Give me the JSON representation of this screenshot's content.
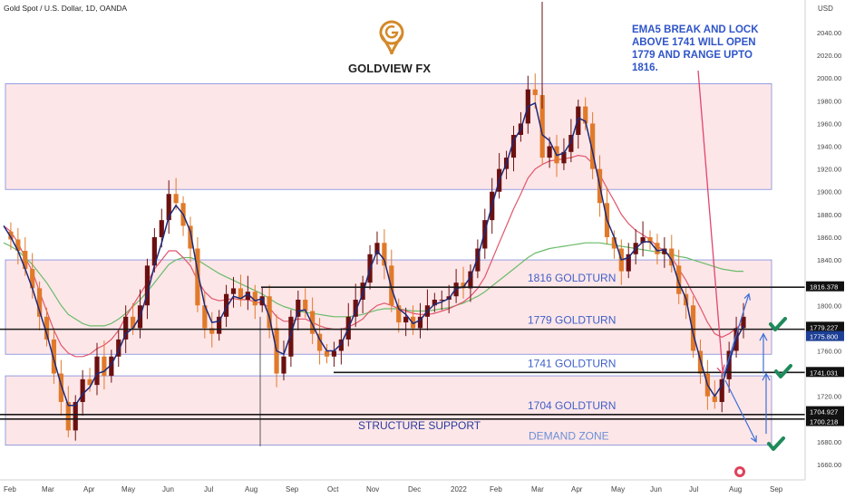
{
  "header": {
    "symbol_title": "Gold Spot / U.S. Dollar, 1D, OANDA"
  },
  "brand": {
    "name": "GOLDVIEW FX",
    "logo_icon": "goldview-g-pin-logo",
    "gold_color": "#d4892a"
  },
  "colors": {
    "zone_fill": "#fde4e6",
    "zone_stroke": "#6f7fd8",
    "price_line": "#1a1a1a",
    "label_blue": "#3f5fc8",
    "candle_up": "#6b1010",
    "candle_down": "#e07a2a",
    "ema_navy": "#1d2a7a",
    "ma_red": "#e0566c",
    "ma_green": "#6abb6a",
    "arrow_blue": "#3c6fd6",
    "check_green": "#1f8a5a",
    "annotation_arrow": "#e0466c"
  },
  "chart_data": {
    "type": "candlestick",
    "title": "Gold Spot / U.S. Dollar, 1D, OANDA",
    "y_unit": "USD",
    "ylim": [
      1650,
      2060
    ],
    "y_ticks": [
      1660,
      1680,
      1700,
      1720,
      1740,
      1760,
      1780,
      1800,
      1820,
      1840,
      1860,
      1880,
      1900,
      1920,
      1940,
      1960,
      1980,
      2000,
      2020,
      2040
    ],
    "x_ticks": [
      "Feb",
      "Mar",
      "Apr",
      "May",
      "Jun",
      "Jul",
      "Aug",
      "Sep",
      "Oct",
      "Nov",
      "Dec",
      "2022",
      "Feb",
      "Mar",
      "Apr",
      "May",
      "Jun",
      "Jul",
      "Aug",
      "Sep"
    ],
    "price_series_close": [
      1865,
      1858,
      1848,
      1832,
      1815,
      1790,
      1770,
      1740,
      1715,
      1690,
      1715,
      1735,
      1730,
      1755,
      1738,
      1755,
      1770,
      1790,
      1780,
      1800,
      1835,
      1860,
      1875,
      1898,
      1890,
      1870,
      1850,
      1800,
      1780,
      1775,
      1790,
      1810,
      1815,
      1805,
      1812,
      1800,
      1808,
      1780,
      1740,
      1755,
      1790,
      1805,
      1795,
      1775,
      1760,
      1755,
      1760,
      1770,
      1790,
      1805,
      1820,
      1845,
      1855,
      1835,
      1800,
      1785,
      1790,
      1780,
      1790,
      1800,
      1805,
      1805,
      1808,
      1820,
      1815,
      1830,
      1850,
      1875,
      1900,
      1920,
      1930,
      1950,
      1960,
      1990,
      1985,
      1930,
      1940,
      1925,
      1935,
      1950,
      1975,
      1960,
      1920,
      1890,
      1860,
      1850,
      1830,
      1845,
      1855,
      1860,
      1855,
      1845,
      1850,
      1835,
      1810,
      1800,
      1760,
      1740,
      1720,
      1715,
      1735,
      1760,
      1780,
      1790
    ],
    "ema_series": [
      1870,
      1860,
      1848,
      1832,
      1815,
      1795,
      1775,
      1752,
      1730,
      1712,
      1712,
      1722,
      1728,
      1740,
      1742,
      1748,
      1760,
      1775,
      1780,
      1790,
      1810,
      1835,
      1855,
      1878,
      1888,
      1880,
      1865,
      1830,
      1800,
      1785,
      1786,
      1798,
      1808,
      1806,
      1810,
      1804,
      1806,
      1790,
      1760,
      1757,
      1775,
      1795,
      1796,
      1783,
      1770,
      1760,
      1760,
      1766,
      1780,
      1795,
      1810,
      1832,
      1848,
      1840,
      1815,
      1797,
      1792,
      1784,
      1787,
      1795,
      1801,
      1803,
      1806,
      1815,
      1816,
      1825,
      1842,
      1865,
      1888,
      1910,
      1925,
      1945,
      1955,
      1975,
      1978,
      1950,
      1945,
      1932,
      1934,
      1944,
      1965,
      1962,
      1935,
      1905,
      1875,
      1860,
      1840,
      1842,
      1850,
      1856,
      1856,
      1848,
      1849,
      1840,
      1820,
      1806,
      1775,
      1752,
      1730,
      1720,
      1730,
      1750,
      1770,
      1782
    ],
    "slow_ma_series": [
      1870,
      1865,
      1855,
      1842,
      1830,
      1812,
      1795,
      1778,
      1765,
      1758,
      1755,
      1755,
      1757,
      1762,
      1765,
      1770,
      1778,
      1790,
      1800,
      1810,
      1820,
      1832,
      1840,
      1848,
      1848,
      1842,
      1835,
      1822,
      1812,
      1806,
      1804,
      1805,
      1806,
      1805,
      1805,
      1803,
      1802,
      1798,
      1790,
      1786,
      1786,
      1788,
      1788,
      1785,
      1782,
      1780,
      1779,
      1779,
      1781,
      1784,
      1788,
      1795,
      1800,
      1802,
      1800,
      1797,
      1795,
      1793,
      1792,
      1792,
      1793,
      1795,
      1797,
      1800,
      1803,
      1808,
      1815,
      1825,
      1840,
      1855,
      1870,
      1885,
      1898,
      1912,
      1920,
      1924,
      1927,
      1928,
      1929,
      1930,
      1932,
      1931,
      1925,
      1915,
      1903,
      1892,
      1880,
      1872,
      1866,
      1862,
      1858,
      1852,
      1848,
      1842,
      1832,
      1822,
      1810,
      1798,
      1785,
      1775,
      1772,
      1775,
      1780,
      1785
    ],
    "long_ma_series": [
      1855,
      1852,
      1848,
      1842,
      1836,
      1828,
      1820,
      1810,
      1800,
      1792,
      1788,
      1784,
      1782,
      1782,
      1782,
      1784,
      1788,
      1793,
      1799,
      1805,
      1812,
      1820,
      1828,
      1836,
      1840,
      1842,
      1842,
      1840,
      1836,
      1832,
      1828,
      1825,
      1822,
      1819,
      1816,
      1813,
      1810,
      1806,
      1802,
      1799,
      1797,
      1795,
      1794,
      1793,
      1792,
      1791,
      1790,
      1790,
      1790,
      1791,
      1792,
      1794,
      1796,
      1797,
      1797,
      1797,
      1796,
      1795,
      1795,
      1795,
      1796,
      1797,
      1798,
      1800,
      1802,
      1805,
      1808,
      1812,
      1817,
      1822,
      1827,
      1832,
      1837,
      1842,
      1846,
      1848,
      1850,
      1851,
      1852,
      1853,
      1854,
      1855,
      1855,
      1855,
      1854,
      1853,
      1852,
      1851,
      1850,
      1849,
      1848,
      1847,
      1846,
      1845,
      1843,
      1842,
      1840,
      1838,
      1836,
      1834,
      1832,
      1831,
      1830,
      1830
    ],
    "current_price": "1775.800",
    "price_tags": [
      {
        "label": "1816.378",
        "value": 1816.378,
        "style": "dark"
      },
      {
        "label": "1779.227",
        "value": 1779.227,
        "style": "dark"
      },
      {
        "label": "1775.800",
        "value": 1775.8,
        "style": "blue"
      },
      {
        "label": "1741.031",
        "value": 1741.031,
        "style": "dark"
      },
      {
        "label": "1704.927",
        "value": 1704.927,
        "style": "dark"
      },
      {
        "label": "1700.218",
        "value": 1700.218,
        "style": "dark"
      }
    ],
    "levels": [
      {
        "label": "1816 GOLDTURN",
        "value": 1816
      },
      {
        "label": "1779 GOLDTURN",
        "value": 1779
      },
      {
        "label": "1741 GOLDTURN",
        "value": 1741
      },
      {
        "label": "1704 GOLDTURN",
        "value": 1704
      },
      {
        "label": "",
        "value": 1700
      }
    ],
    "zones": [
      {
        "name": "upper-zone",
        "top": 1995,
        "bottom": 1902
      },
      {
        "name": "middle-zone",
        "top": 1840,
        "bottom": 1757
      },
      {
        "name": "lower-zone",
        "top": 1738,
        "bottom": 1677
      }
    ],
    "zone_labels": {
      "structure": "STRUCTURE SUPPORT",
      "demand": "DEMAND ZONE"
    },
    "annotation": {
      "lines": [
        "EMA5 BREAK AND LOCK",
        "ABOVE 1741 WILL OPEN",
        "1779 AND RANGE UPTO",
        "1816."
      ]
    }
  }
}
